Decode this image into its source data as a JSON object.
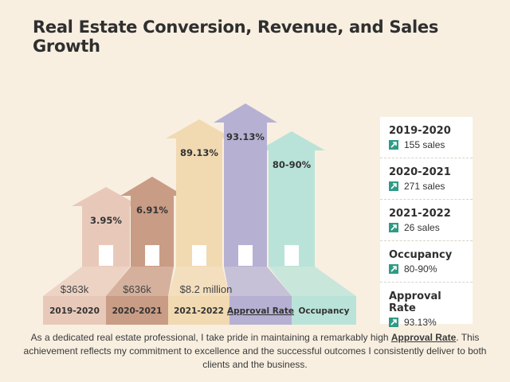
{
  "title": "Real Estate Conversion, Revenue, and Sales Growth",
  "houses": [
    {
      "category": "2019-2020",
      "percent": "3.95%",
      "revenue": "$363k",
      "color": "#e8c9b9",
      "base_color": "#e8c9b9"
    },
    {
      "category": "2020-2021",
      "percent": "6.91%",
      "revenue": "$636k",
      "color": "#c99c85",
      "base_color": "#c99c85"
    },
    {
      "category": "2021-2022",
      "percent": "89.13%",
      "revenue": "$8.2 million",
      "color": "#f1d9b1",
      "base_color": "#f1d9b1"
    },
    {
      "category": "Approval Rate",
      "percent": "93.13%",
      "revenue": "",
      "color": "#b6b1d3",
      "base_color": "#b6b1d3"
    },
    {
      "category": "Occupancy",
      "percent": "80-90%",
      "revenue": "",
      "color": "#b9e3d8",
      "base_color": "#b9e3d8"
    }
  ],
  "side_panel": [
    {
      "label": "2019-2020",
      "value": "155 sales",
      "icon": "arrow-up-right-icon"
    },
    {
      "label": "2020-2021",
      "value": "271 sales",
      "icon": "arrow-up-right-icon"
    },
    {
      "label": "2021-2022",
      "value": "26 sales",
      "icon": "arrow-up-right-icon"
    },
    {
      "label": "Occupancy",
      "value": "80-90%",
      "icon": "arrow-up-right-icon"
    },
    {
      "label": "Approval Rate",
      "value": "93.13%",
      "icon": "arrow-up-right-icon"
    }
  ],
  "footer": {
    "before": "As a dedicated real estate professional, I take pride in maintaining a remarkably high ",
    "highlight": "Approval Rate",
    "after": ". This achievement reflects my commitment to excellence and the successful outcomes I consistently deliver to both clients and the business."
  }
}
